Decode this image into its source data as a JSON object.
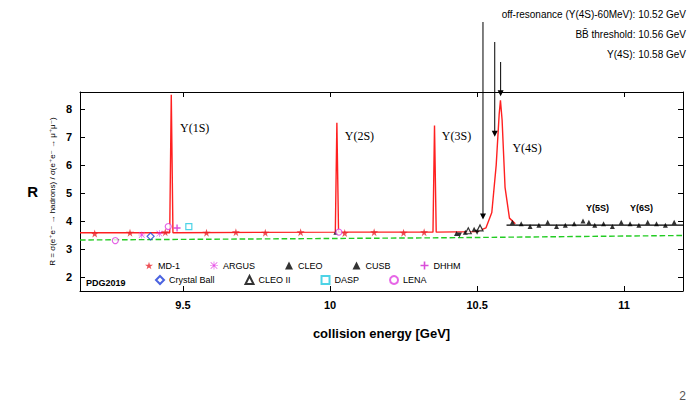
{
  "chart_data": {
    "type": "line",
    "ylabel": "R",
    "ylabel_detail": "R = σ(e⁺e⁻ → hadrons) / σ(e⁺e⁻ → μ⁺μ⁻)",
    "xlabel": "collision energy [GeV]",
    "xlim": [
      9.15,
      11.2
    ],
    "xticks": [
      9.5,
      10,
      10.5,
      11
    ],
    "ylim": [
      1.5,
      8.6
    ],
    "yticks": [
      2,
      3,
      4,
      5,
      6,
      7,
      8
    ],
    "grid": false,
    "legend": "lower left",
    "source": "PDG2019",
    "page_number": "2",
    "markers": [
      {
        "text": "off-resonance (Υ(4S)-60MeV): 10.52 GeV",
        "x": 10.52,
        "y": 4.05
      },
      {
        "text": "BB̄ threshold: 10.56 GeV",
        "x": 10.56,
        "y": 7.0
      },
      {
        "text": "Υ(4S): 10.58 GeV",
        "x": 10.58,
        "y": 8.45
      }
    ],
    "annotations": [
      {
        "text": "Υ(1S)",
        "x": 9.49,
        "y": 7.1
      },
      {
        "text": "Υ(2S)",
        "x": 10.05,
        "y": 6.8
      },
      {
        "text": "Υ(3S)",
        "x": 10.38,
        "y": 6.8
      },
      {
        "text": "Υ(4S)",
        "x": 10.62,
        "y": 6.4
      }
    ],
    "annotations_small": [
      {
        "text": "Υ(5S)",
        "x": 10.87,
        "y": 4.3
      },
      {
        "text": "Υ(6S)",
        "x": 11.02,
        "y": 4.3
      }
    ],
    "series": [
      {
        "type": "line",
        "color": "#ff2020",
        "line_style": "solid",
        "x": [
          9.15,
          9.455,
          9.4603,
          9.466,
          10.018,
          10.0233,
          10.029,
          10.35,
          10.3552,
          10.361,
          10.5,
          10.53,
          10.55,
          10.565,
          10.575,
          10.5794,
          10.585,
          10.595,
          10.61,
          10.63
        ],
        "values": [
          3.58,
          3.58,
          8.5,
          3.58,
          3.6,
          7.5,
          3.6,
          3.6,
          7.4,
          3.6,
          3.62,
          3.75,
          4.3,
          6.0,
          7.8,
          8.3,
          7.6,
          5.2,
          4.1,
          3.9
        ]
      },
      {
        "type": "line",
        "color": "#000000",
        "line_style": "solid",
        "x": [
          10.6,
          11.2
        ],
        "values": [
          3.85,
          3.85
        ]
      },
      {
        "type": "line",
        "color": "#22cc22",
        "line_style": "dashed",
        "x": [
          9.15,
          9.8,
          10.4,
          11.2
        ],
        "values": [
          3.32,
          3.36,
          3.4,
          3.48
        ]
      },
      {
        "name": "MD-1",
        "type": "scatter",
        "marker": "star",
        "color": "#e8242b",
        "x": [
          9.2,
          9.32,
          9.44,
          9.58,
          9.68,
          9.78,
          9.9,
          10.05,
          10.15,
          10.25,
          10.32
        ],
        "values": [
          3.55,
          3.58,
          3.6,
          3.58,
          3.6,
          3.58,
          3.6,
          3.57,
          3.6,
          3.58,
          3.6
        ]
      },
      {
        "name": "ARGUS",
        "type": "scatter",
        "marker": "asterisk",
        "color": "#e020e0",
        "x": [
          9.36,
          9.42
        ],
        "values": [
          3.5,
          3.55
        ]
      },
      {
        "name": "CLEO",
        "type": "scatter",
        "marker": "triangle",
        "color": "#000000",
        "x": [
          10.02,
          10.43,
          10.46,
          10.49,
          10.62,
          10.65,
          10.68,
          10.71,
          10.74,
          10.77,
          10.8,
          10.83,
          10.86,
          10.88,
          10.9,
          10.93,
          10.96,
          10.99,
          11.02,
          11.05,
          11.08,
          11.11,
          11.14,
          11.17
        ],
        "values": [
          3.6,
          3.55,
          3.6,
          3.7,
          3.95,
          3.9,
          3.8,
          3.85,
          3.95,
          3.8,
          3.85,
          3.9,
          4.0,
          3.95,
          3.85,
          3.9,
          3.8,
          3.95,
          3.9,
          3.85,
          3.95,
          3.9,
          3.85,
          3.95
        ]
      },
      {
        "name": "CUSB",
        "type": "scatter",
        "marker": "triangle-down",
        "color": "#000000",
        "x": [
          10.44,
          10.5
        ],
        "values": [
          3.5,
          3.6
        ]
      },
      {
        "name": "DHHM",
        "type": "scatter",
        "marker": "plus",
        "color": "#d020d0",
        "x": [
          9.48
        ],
        "values": [
          3.75
        ]
      },
      {
        "name": "Crystal Ball",
        "type": "scatter",
        "marker": "diamond-open",
        "color": "#1e3cd8",
        "x": [
          9.39
        ],
        "values": [
          3.45
        ]
      },
      {
        "name": "CLEO II",
        "type": "scatter",
        "marker": "triangle-open",
        "color": "#000000",
        "x": [
          10.47,
          10.51
        ],
        "values": [
          3.65,
          3.75
        ]
      },
      {
        "name": "DASP",
        "type": "scatter",
        "marker": "square-open",
        "color": "#20c8e0",
        "x": [
          9.52
        ],
        "values": [
          3.8
        ]
      },
      {
        "name": "LENA",
        "type": "scatter",
        "marker": "circle-open",
        "color": "#e040e0",
        "x": [
          9.27,
          9.45,
          10.03
        ],
        "values": [
          3.3,
          3.8,
          3.6
        ]
      }
    ]
  }
}
